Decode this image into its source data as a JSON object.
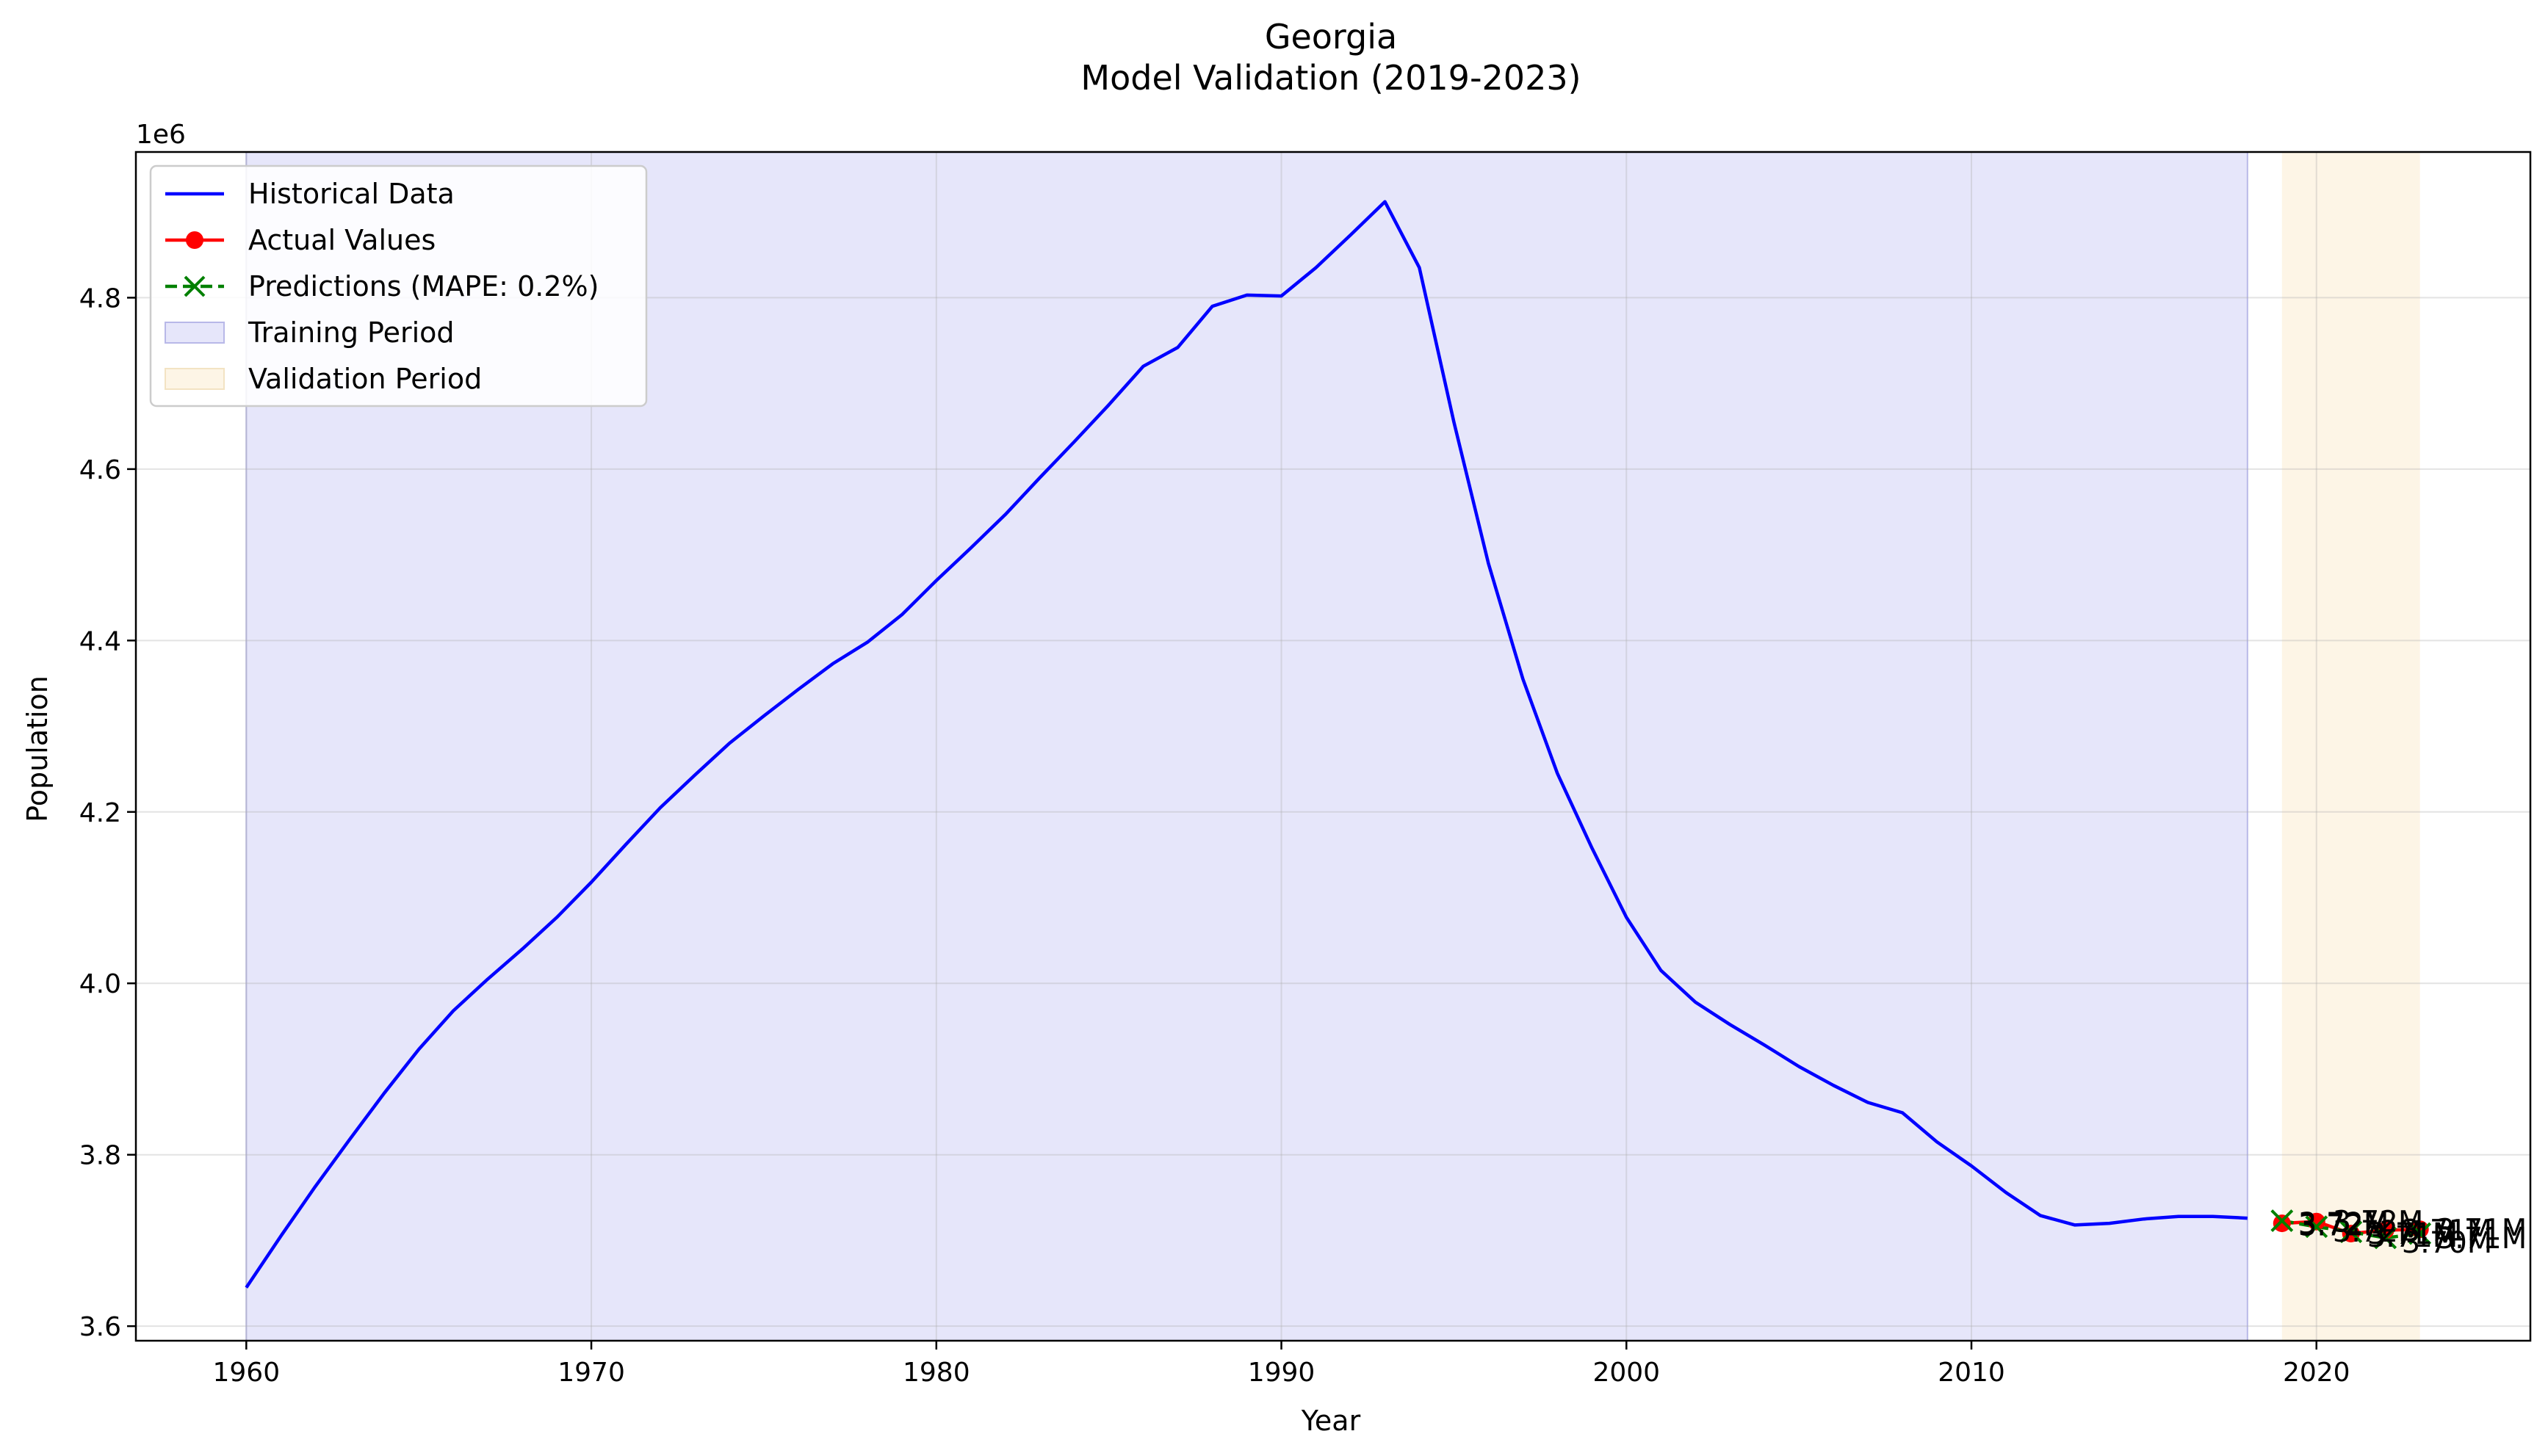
{
  "chart_data": {
    "type": "line",
    "title": "Georgia",
    "subtitle": "Model Validation (2019-2023)",
    "xlabel": "Year",
    "ylabel": "Population",
    "y_offset_label": "1e6",
    "xlim": [
      1956.8,
      2026.2
    ],
    "ylim": [
      3.583,
      4.97
    ],
    "x_ticks": [
      1960,
      1970,
      1980,
      1990,
      2000,
      2010,
      2020
    ],
    "y_ticks": [
      3.6,
      3.8,
      4.0,
      4.2,
      4.4,
      4.6,
      4.8
    ],
    "x_tick_labels": [
      "1960",
      "1970",
      "1980",
      "1990",
      "2000",
      "2010",
      "2020"
    ],
    "y_tick_labels": [
      "3.6",
      "3.8",
      "4.0",
      "4.2",
      "4.4",
      "4.6",
      "4.8"
    ],
    "grid": true,
    "legend_position": "top-left",
    "legend": [
      {
        "key": "historical",
        "label": "Historical Data"
      },
      {
        "key": "actual",
        "label": "Actual Values"
      },
      {
        "key": "predicted",
        "label": "Predictions (MAPE: 0.2%)"
      },
      {
        "key": "training",
        "label": "Training Period"
      },
      {
        "key": "validation",
        "label": "Validation Period"
      }
    ],
    "colors": {
      "historical": "#0000ff",
      "actual": "#ff0000",
      "predicted": "#008000",
      "training": "#e6e6fa",
      "validation": "#fdf5e6"
    },
    "training_period": [
      1960,
      2018
    ],
    "validation_period": [
      2019,
      2023
    ],
    "historical": {
      "x": [
        1960,
        1961,
        1962,
        1963,
        1964,
        1965,
        1966,
        1967,
        1968,
        1969,
        1970,
        1971,
        1972,
        1973,
        1974,
        1975,
        1976,
        1977,
        1978,
        1979,
        1980,
        1981,
        1982,
        1983,
        1984,
        1985,
        1986,
        1987,
        1988,
        1989,
        1990,
        1991,
        1992,
        1993,
        1994,
        1995,
        1996,
        1997,
        1998,
        1999,
        2000,
        2001,
        2002,
        2003,
        2004,
        2005,
        2006,
        2007,
        2008,
        2009,
        2010,
        2011,
        2012,
        2013,
        2014,
        2015,
        2016,
        2017,
        2018
      ],
      "y": [
        3.645,
        3.705,
        3.763,
        3.818,
        3.872,
        3.923,
        3.968,
        4.005,
        4.04,
        4.077,
        4.118,
        4.162,
        4.205,
        4.243,
        4.28,
        4.312,
        4.343,
        4.373,
        4.398,
        4.43,
        4.47,
        4.508,
        4.547,
        4.59,
        4.632,
        4.675,
        4.72,
        4.742,
        4.79,
        4.803,
        4.802,
        4.835,
        4.873,
        4.912,
        4.835,
        4.655,
        4.49,
        4.355,
        4.245,
        4.158,
        4.077,
        4.015,
        3.978,
        3.952,
        3.928,
        3.903,
        3.881,
        3.861,
        3.849,
        3.815,
        3.787,
        3.756,
        3.729,
        3.718,
        3.72,
        3.725,
        3.728,
        3.728,
        3.726
      ]
    },
    "actual": {
      "x": [
        2019,
        2020,
        2021,
        2022,
        2023
      ],
      "y": [
        3.72,
        3.722,
        3.708,
        3.712,
        3.713
      ],
      "labels": [
        "3.72M",
        "3.72M",
        "3.71M",
        "3.71M",
        "3.71M"
      ]
    },
    "predicted": {
      "x": [
        2019,
        2020,
        2021,
        2022,
        2023
      ],
      "y": [
        3.723,
        3.716,
        3.71,
        3.703,
        3.708
      ],
      "labels": [
        "3.72M",
        "3.72M",
        "3.71M",
        "3.70M",
        "3.71M"
      ]
    }
  }
}
